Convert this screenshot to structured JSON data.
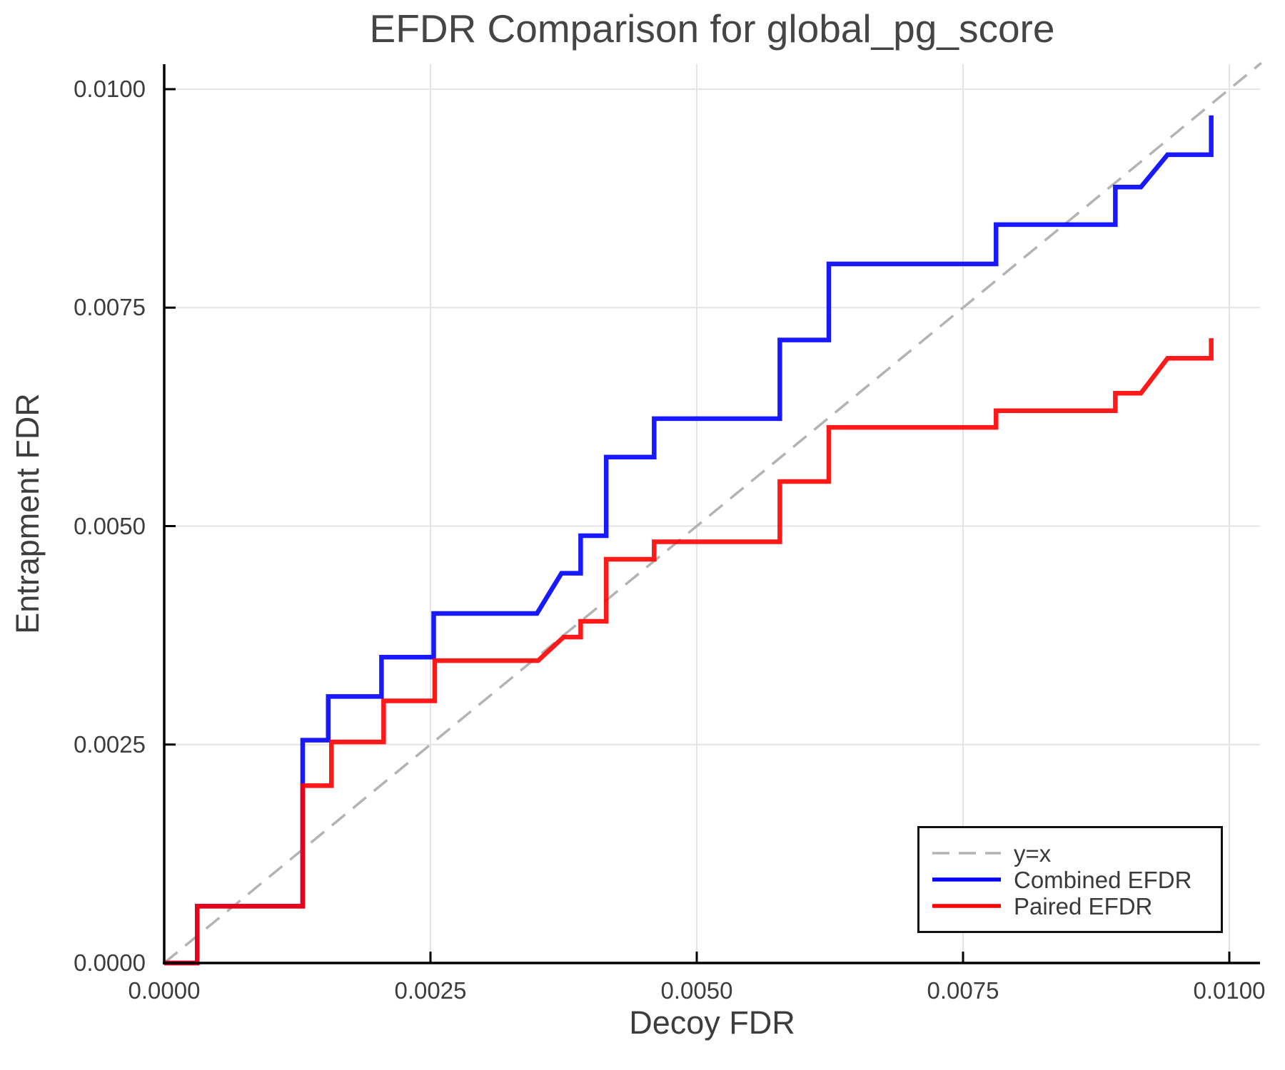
{
  "title": "EFDR Comparison for global_pg_score",
  "axes": {
    "xlabel": "Decoy FDR",
    "ylabel": "Entrapment FDR",
    "x_tick_labels": [
      "0.0000",
      "0.0025",
      "0.0050",
      "0.0075",
      "0.0100"
    ],
    "y_tick_labels": [
      "0.0000",
      "0.0025",
      "0.0050",
      "0.0075",
      "0.0100"
    ]
  },
  "legend": {
    "items": [
      {
        "label": "y=x",
        "style": "dashed",
        "color": "#b3b3b3"
      },
      {
        "label": "Combined EFDR",
        "style": "solid",
        "color": "#0000ff"
      },
      {
        "label": "Paired EFDR",
        "style": "solid",
        "color": "#ff0000"
      }
    ],
    "position": "lower right"
  },
  "colors": {
    "combined": "#0000ff",
    "paired": "#ff0000",
    "identity": "#b3b3b3",
    "grid": "#e4e4e4",
    "spine": "#000000",
    "text": "#3d3d3d"
  },
  "chart_data": {
    "type": "line",
    "title": "EFDR Comparison for global_pg_score",
    "xlabel": "Decoy FDR",
    "ylabel": "Entrapment FDR",
    "xlim": [
      0.0,
      0.0103
    ],
    "ylim": [
      0.0,
      0.0103
    ],
    "x_ticks": [
      0.0,
      0.0025,
      0.005,
      0.0075,
      0.01
    ],
    "y_ticks": [
      0.0,
      0.0025,
      0.005,
      0.0075,
      0.01
    ],
    "grid": true,
    "legend_position": "lower right",
    "reference_line": {
      "name": "y=x",
      "from": [
        0.0,
        0.0
      ],
      "to": [
        0.0103,
        0.0103
      ]
    },
    "series": [
      {
        "name": "Combined EFDR",
        "color_key": "combined",
        "points": [
          [
            0.0,
            0.0
          ],
          [
            0.00031,
            0.0
          ],
          [
            0.00031,
            0.00065
          ],
          [
            0.0013,
            0.00065
          ],
          [
            0.0013,
            0.00255
          ],
          [
            0.00154,
            0.00255
          ],
          [
            0.00154,
            0.00305
          ],
          [
            0.00204,
            0.00305
          ],
          [
            0.00204,
            0.0035
          ],
          [
            0.00253,
            0.0035
          ],
          [
            0.00253,
            0.004
          ],
          [
            0.0035,
            0.004
          ],
          [
            0.00373,
            0.00446
          ],
          [
            0.00391,
            0.00446
          ],
          [
            0.00391,
            0.00489
          ],
          [
            0.00415,
            0.00489
          ],
          [
            0.00415,
            0.00579
          ],
          [
            0.0046,
            0.00579
          ],
          [
            0.0046,
            0.00623
          ],
          [
            0.00578,
            0.00623
          ],
          [
            0.00578,
            0.00713
          ],
          [
            0.00624,
            0.00713
          ],
          [
            0.00624,
            0.008
          ],
          [
            0.00781,
            0.008
          ],
          [
            0.00781,
            0.00845
          ],
          [
            0.00893,
            0.00845
          ],
          [
            0.00893,
            0.00888
          ],
          [
            0.00917,
            0.00888
          ],
          [
            0.00942,
            0.00925
          ],
          [
            0.00983,
            0.00925
          ],
          [
            0.00983,
            0.0097
          ]
        ]
      },
      {
        "name": "Paired EFDR",
        "color_key": "paired",
        "points": [
          [
            0.0,
            0.0
          ],
          [
            0.00031,
            0.0
          ],
          [
            0.00031,
            0.00065
          ],
          [
            0.0013,
            0.00065
          ],
          [
            0.0013,
            0.00203
          ],
          [
            0.00157,
            0.00203
          ],
          [
            0.00157,
            0.00253
          ],
          [
            0.00206,
            0.00253
          ],
          [
            0.00206,
            0.003
          ],
          [
            0.00254,
            0.003
          ],
          [
            0.00254,
            0.00346
          ],
          [
            0.00351,
            0.00346
          ],
          [
            0.00375,
            0.00373
          ],
          [
            0.00391,
            0.00373
          ],
          [
            0.00391,
            0.00391
          ],
          [
            0.00415,
            0.00391
          ],
          [
            0.00415,
            0.00462
          ],
          [
            0.0046,
            0.00462
          ],
          [
            0.0046,
            0.00482
          ],
          [
            0.00578,
            0.00482
          ],
          [
            0.00578,
            0.00551
          ],
          [
            0.00624,
            0.00551
          ],
          [
            0.00624,
            0.00613
          ],
          [
            0.00781,
            0.00613
          ],
          [
            0.00781,
            0.00632
          ],
          [
            0.00893,
            0.00632
          ],
          [
            0.00893,
            0.00652
          ],
          [
            0.00917,
            0.00652
          ],
          [
            0.00942,
            0.00692
          ],
          [
            0.00983,
            0.00692
          ],
          [
            0.00983,
            0.00715
          ]
        ]
      }
    ]
  }
}
